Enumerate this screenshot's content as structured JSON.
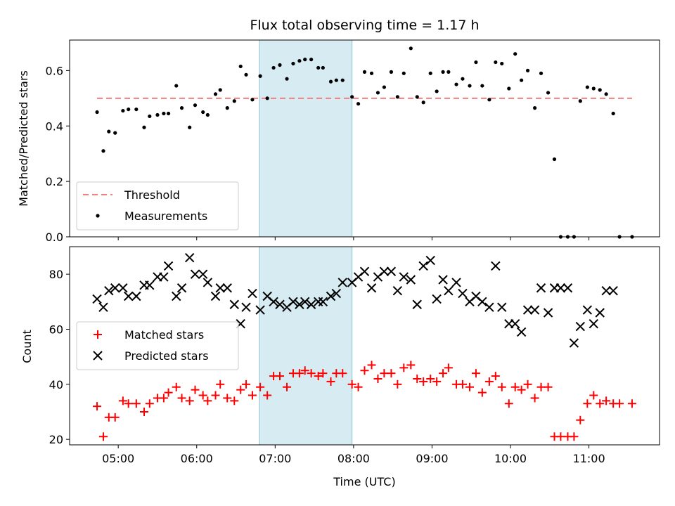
{
  "chart_data": {
    "title": "Flux total observing time = 1.17 h",
    "xlabel": "Time (UTC)",
    "x_ticks": [
      "05:00",
      "06:00",
      "07:00",
      "08:00",
      "09:00",
      "10:00",
      "11:00"
    ],
    "x_tick_hours": [
      5,
      6,
      7,
      8,
      9,
      10,
      11
    ],
    "x_range": [
      4.38,
      11.9
    ],
    "shaded_span": {
      "start": 6.8,
      "end": 7.98,
      "color": "#add8e6"
    },
    "panels": [
      {
        "type": "scatter",
        "ylabel": "Matched/Predicted stars",
        "ylim": [
          0,
          0.71
        ],
        "y_ticks": [
          0.0,
          0.2,
          0.4,
          0.6
        ],
        "threshold": {
          "name": "Threshold",
          "value": 0.5,
          "x": [
            4.73,
            11.55
          ],
          "color": "#f08080"
        },
        "legend": {
          "placement": "lower-left",
          "entries": [
            "Threshold",
            "Measurements"
          ]
        },
        "series": [
          {
            "name": "Measurements",
            "color": "#000000",
            "marker": "dot",
            "x": [
              4.73,
              4.81,
              4.88,
              4.96,
              5.06,
              5.13,
              5.23,
              5.33,
              5.4,
              5.5,
              5.58,
              5.64,
              5.74,
              5.81,
              5.91,
              5.98,
              6.08,
              6.14,
              6.24,
              6.3,
              6.39,
              6.48,
              6.56,
              6.63,
              6.71,
              6.81,
              6.9,
              6.98,
              7.06,
              7.15,
              7.23,
              7.31,
              7.38,
              7.46,
              7.55,
              7.61,
              7.71,
              7.78,
              7.86,
              7.98,
              8.06,
              8.14,
              8.23,
              8.31,
              8.39,
              8.48,
              8.56,
              8.64,
              8.73,
              8.81,
              8.89,
              8.98,
              9.06,
              9.14,
              9.21,
              9.31,
              9.39,
              9.48,
              9.56,
              9.64,
              9.73,
              9.81,
              9.89,
              9.98,
              10.06,
              10.14,
              10.22,
              10.31,
              10.39,
              10.48,
              10.56,
              10.64,
              10.73,
              10.81,
              10.89,
              10.98,
              11.06,
              11.14,
              11.22,
              11.31,
              11.39,
              11.55
            ],
            "y": [
              0.45,
              0.31,
              0.38,
              0.375,
              0.455,
              0.46,
              0.46,
              0.395,
              0.435,
              0.44,
              0.445,
              0.445,
              0.545,
              0.465,
              0.395,
              0.475,
              0.45,
              0.44,
              0.515,
              0.53,
              0.465,
              0.49,
              0.615,
              0.585,
              0.495,
              0.58,
              0.5,
              0.61,
              0.62,
              0.57,
              0.625,
              0.635,
              0.64,
              0.64,
              0.61,
              0.61,
              0.56,
              0.565,
              0.565,
              0.505,
              0.48,
              0.595,
              0.59,
              0.52,
              0.54,
              0.595,
              0.505,
              0.59,
              0.68,
              0.505,
              0.485,
              0.59,
              0.525,
              0.595,
              0.595,
              0.55,
              0.57,
              0.545,
              0.63,
              0.545,
              0.495,
              0.63,
              0.625,
              0.535,
              0.66,
              0.565,
              0.6,
              0.465,
              0.59,
              0.52,
              0.28,
              0.0,
              0.0,
              0.0,
              0.49,
              0.54,
              0.535,
              0.53,
              0.515,
              0.445,
              0.0,
              0.0
            ]
          }
        ]
      },
      {
        "type": "scatter",
        "ylabel": "Count",
        "ylim": [
          18,
          90
        ],
        "y_ticks": [
          20,
          40,
          60,
          80
        ],
        "legend": {
          "placement": "center-left",
          "entries": [
            "Matched stars",
            "Predicted stars"
          ]
        },
        "series": [
          {
            "name": "Matched stars",
            "color": "#ff0000",
            "marker": "plus",
            "x": [
              4.73,
              4.81,
              4.88,
              4.96,
              5.06,
              5.13,
              5.23,
              5.33,
              5.4,
              5.5,
              5.58,
              5.64,
              5.74,
              5.81,
              5.91,
              5.98,
              6.08,
              6.14,
              6.24,
              6.3,
              6.39,
              6.48,
              6.56,
              6.63,
              6.71,
              6.81,
              6.9,
              6.98,
              7.06,
              7.15,
              7.23,
              7.31,
              7.38,
              7.46,
              7.55,
              7.61,
              7.71,
              7.78,
              7.86,
              7.98,
              8.06,
              8.14,
              8.23,
              8.31,
              8.39,
              8.48,
              8.56,
              8.64,
              8.73,
              8.81,
              8.89,
              8.98,
              9.06,
              9.14,
              9.21,
              9.31,
              9.39,
              9.48,
              9.56,
              9.64,
              9.73,
              9.81,
              9.89,
              9.98,
              10.06,
              10.14,
              10.22,
              10.31,
              10.39,
              10.48,
              10.56,
              10.64,
              10.73,
              10.81,
              10.89,
              10.98,
              11.06,
              11.14,
              11.22,
              11.31,
              11.39,
              11.55
            ],
            "y": [
              32,
              21,
              28,
              28,
              34,
              33,
              33,
              30,
              33,
              35,
              35,
              37,
              39,
              35,
              34,
              38,
              36,
              34,
              36,
              40,
              35,
              34,
              38,
              40,
              36,
              39,
              36,
              43,
              43,
              39,
              44,
              44,
              45,
              44,
              43,
              44,
              41,
              44,
              44,
              40,
              39,
              45,
              47,
              42,
              44,
              44,
              40,
              46,
              47,
              42,
              41,
              42,
              41,
              44,
              46,
              40,
              40,
              39,
              44,
              37,
              41,
              43,
              39,
              33,
              39,
              38,
              40,
              35,
              39,
              39,
              21,
              21,
              21,
              21,
              27,
              33,
              36,
              33,
              34,
              33,
              33,
              33
            ]
          },
          {
            "name": "Predicted stars",
            "color": "#000000",
            "marker": "x",
            "x": [
              4.73,
              4.81,
              4.88,
              4.96,
              5.06,
              5.13,
              5.23,
              5.33,
              5.4,
              5.5,
              5.58,
              5.64,
              5.74,
              5.81,
              5.91,
              5.98,
              6.08,
              6.14,
              6.24,
              6.3,
              6.39,
              6.48,
              6.56,
              6.63,
              6.71,
              6.81,
              6.9,
              6.98,
              7.06,
              7.15,
              7.23,
              7.31,
              7.38,
              7.46,
              7.55,
              7.61,
              7.71,
              7.78,
              7.86,
              7.98,
              8.06,
              8.14,
              8.23,
              8.31,
              8.39,
              8.48,
              8.56,
              8.64,
              8.73,
              8.81,
              8.89,
              8.98,
              9.06,
              9.14,
              9.21,
              9.31,
              9.39,
              9.48,
              9.56,
              9.64,
              9.73,
              9.81,
              9.89,
              9.98,
              10.06,
              10.14,
              10.22,
              10.31,
              10.39,
              10.48,
              10.56,
              10.64,
              10.73,
              10.81,
              10.89,
              10.98,
              11.06,
              11.14,
              11.22,
              11.31
            ],
            "y": [
              71,
              68,
              74,
              75,
              75,
              72,
              72,
              76,
              76,
              79,
              79,
              83,
              72,
              75,
              86,
              80,
              80,
              77,
              72,
              75,
              75,
              69,
              62,
              68,
              73,
              67,
              72,
              70,
              69,
              68,
              70,
              69,
              70,
              69,
              70,
              70,
              72,
              73,
              77,
              77,
              79,
              81,
              75,
              79,
              81,
              81,
              74,
              79,
              78,
              69,
              83,
              85,
              71,
              78,
              74,
              77,
              73,
              70,
              72,
              70,
              68,
              83,
              68,
              62,
              62,
              59,
              67,
              67,
              75,
              66,
              75,
              75,
              75,
              55,
              61,
              67,
              62,
              66,
              74,
              74
            ]
          }
        ]
      }
    ]
  }
}
